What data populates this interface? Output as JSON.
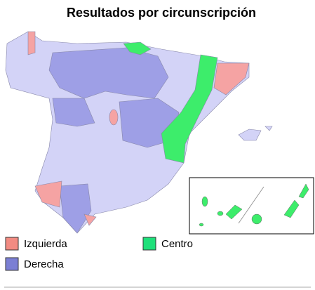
{
  "title": "Resultados por circunscripción",
  "legend": [
    {
      "label": "Izquierda",
      "color": "#f28b82"
    },
    {
      "label": "Centro",
      "color": "#1ee07a"
    },
    {
      "label": "Derecha",
      "color": "#7b7fd4"
    }
  ]
}
